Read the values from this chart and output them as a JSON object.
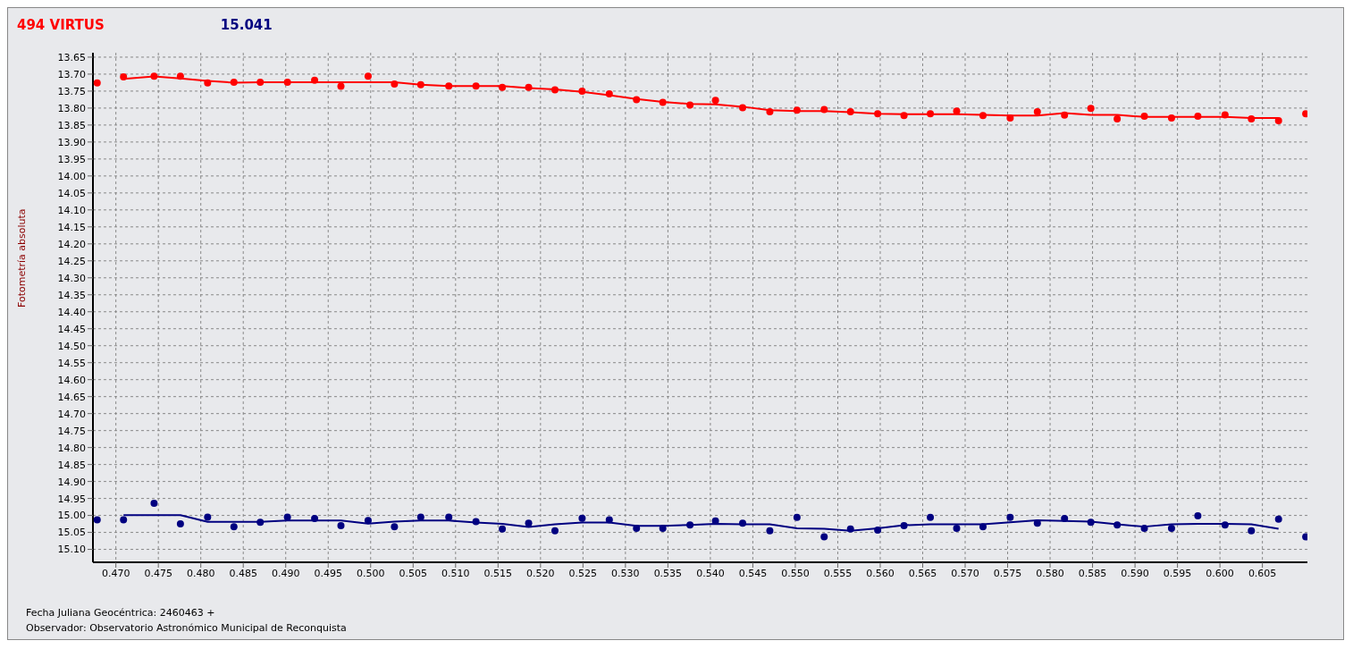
{
  "chart_data": {
    "type": "scatter",
    "ylabel": "Fotometría absoluta",
    "legend": "top left",
    "grid": true,
    "marker": "circle",
    "annotations": [
      "Fecha Juliana Geocéntrica: 2460463 +",
      "Observador: Observatorio Astronómico Municipal de Reconquista"
    ],
    "x": [
      0.4678,
      0.4709,
      0.4745,
      0.4776,
      0.4808,
      0.4839,
      0.487,
      0.4902,
      0.4934,
      0.4965,
      0.4997,
      0.5028,
      0.5059,
      0.5092,
      0.5124,
      0.5155,
      0.5186,
      0.5217,
      0.5249,
      0.5281,
      0.5313,
      0.5344,
      0.5376,
      0.5406,
      0.5438,
      0.547,
      0.5502,
      0.5534,
      0.5565,
      0.5597,
      0.5628,
      0.5659,
      0.569,
      0.5721,
      0.5753,
      0.5785,
      0.5817,
      0.5848,
      0.5879,
      0.5911,
      0.5943,
      0.5974,
      0.6006,
      0.6037,
      0.6069,
      0.6101
    ],
    "xlim": [
      0.4673,
      0.6103
    ],
    "xticks": [
      {
        "value": 0.47,
        "label": "0.470"
      },
      {
        "value": 0.475,
        "label": "0.475"
      },
      {
        "value": 0.48,
        "label": "0.480"
      },
      {
        "value": 0.485,
        "label": "0.485"
      },
      {
        "value": 0.49,
        "label": "0.490"
      },
      {
        "value": 0.495,
        "label": "0.495"
      },
      {
        "value": 0.5,
        "label": "0.500"
      },
      {
        "value": 0.505,
        "label": "0.505"
      },
      {
        "value": 0.51,
        "label": "0.510"
      },
      {
        "value": 0.515,
        "label": "0.515"
      },
      {
        "value": 0.52,
        "label": "0.520"
      },
      {
        "value": 0.525,
        "label": "0.525"
      },
      {
        "value": 0.53,
        "label": "0.530"
      },
      {
        "value": 0.535,
        "label": "0.535"
      },
      {
        "value": 0.54,
        "label": "0.540"
      },
      {
        "value": 0.545,
        "label": "0.545"
      },
      {
        "value": 0.55,
        "label": "0.550"
      },
      {
        "value": 0.555,
        "label": "0.555"
      },
      {
        "value": 0.56,
        "label": "0.560"
      },
      {
        "value": 0.565,
        "label": "0.565"
      },
      {
        "value": 0.57,
        "label": "0.570"
      },
      {
        "value": 0.575,
        "label": "0.575"
      },
      {
        "value": 0.58,
        "label": "0.580"
      },
      {
        "value": 0.585,
        "label": "0.585"
      },
      {
        "value": 0.59,
        "label": "0.590"
      },
      {
        "value": 0.595,
        "label": "0.595"
      },
      {
        "value": 0.6,
        "label": "0.600"
      },
      {
        "value": 0.605,
        "label": "0.605"
      }
    ],
    "ylim": [
      15.138,
      13.637
    ],
    "yticks": [
      {
        "value": 13.65,
        "label": "13.65"
      },
      {
        "value": 13.7,
        "label": "13.70"
      },
      {
        "value": 13.75,
        "label": "13.75"
      },
      {
        "value": 13.8,
        "label": "13.80"
      },
      {
        "value": 13.85,
        "label": "13.85"
      },
      {
        "value": 13.9,
        "label": "13.90"
      },
      {
        "value": 13.95,
        "label": "13.95"
      },
      {
        "value": 14.0,
        "label": "14.00"
      },
      {
        "value": 14.05,
        "label": "14.05"
      },
      {
        "value": 14.1,
        "label": "14.10"
      },
      {
        "value": 14.15,
        "label": "14.15"
      },
      {
        "value": 14.2,
        "label": "14.20"
      },
      {
        "value": 14.25,
        "label": "14.25"
      },
      {
        "value": 14.3,
        "label": "14.30"
      },
      {
        "value": 14.35,
        "label": "14.35"
      },
      {
        "value": 14.4,
        "label": "14.40"
      },
      {
        "value": 14.45,
        "label": "14.45"
      },
      {
        "value": 14.5,
        "label": "14.50"
      },
      {
        "value": 14.55,
        "label": "14.55"
      },
      {
        "value": 14.6,
        "label": "14.60"
      },
      {
        "value": 14.65,
        "label": "14.65"
      },
      {
        "value": 14.7,
        "label": "14.70"
      },
      {
        "value": 14.75,
        "label": "14.75"
      },
      {
        "value": 14.8,
        "label": "14.80"
      },
      {
        "value": 14.85,
        "label": "14.85"
      },
      {
        "value": 14.9,
        "label": "14.90"
      },
      {
        "value": 14.95,
        "label": "14.95"
      },
      {
        "value": 15.0,
        "label": "15.00"
      },
      {
        "value": 15.05,
        "label": "15.05"
      },
      {
        "value": 15.1,
        "label": "15.10"
      }
    ],
    "series": [
      {
        "name": "494 VIRTUS",
        "color": "#ff0000",
        "values": [
          13.726,
          13.708,
          13.706,
          13.706,
          13.726,
          13.724,
          13.724,
          13.724,
          13.718,
          13.736,
          13.706,
          13.729,
          13.731,
          13.735,
          13.735,
          13.739,
          13.739,
          13.746,
          13.75,
          13.758,
          13.775,
          13.783,
          13.791,
          13.777,
          13.799,
          13.811,
          13.806,
          13.804,
          13.811,
          13.817,
          13.822,
          13.817,
          13.809,
          13.822,
          13.829,
          13.811,
          13.821,
          13.801,
          13.832,
          13.824,
          13.829,
          13.824,
          13.82,
          13.832,
          13.837,
          13.817
        ]
      },
      {
        "name": "15.041",
        "color": "#000080",
        "values": [
          15.013,
          15.013,
          14.964,
          15.025,
          15.005,
          15.033,
          15.02,
          15.005,
          15.009,
          15.03,
          15.015,
          15.033,
          15.005,
          15.005,
          15.018,
          15.04,
          15.023,
          15.045,
          15.008,
          15.013,
          15.038,
          15.038,
          15.028,
          15.016,
          15.023,
          15.045,
          15.006,
          15.063,
          15.04,
          15.043,
          15.03,
          15.006,
          15.038,
          15.033,
          15.006,
          15.023,
          15.009,
          15.02,
          15.028,
          15.038,
          15.038,
          15.001,
          15.028,
          15.045,
          15.011,
          15.063
        ]
      },
      {
        "type": "line",
        "marker": "none",
        "color": "#ff0000",
        "x": [
          0.4709,
          0.4745,
          0.4776,
          0.4808,
          0.4839,
          0.487,
          0.4902,
          0.4934,
          0.4965,
          0.4997,
          0.5028,
          0.5059,
          0.5092,
          0.5124,
          0.5155,
          0.5186,
          0.5217,
          0.5249,
          0.5281,
          0.5313,
          0.5344,
          0.5376,
          0.5406,
          0.5438,
          0.547,
          0.5502,
          0.5534,
          0.5565,
          0.5597,
          0.5628,
          0.5659,
          0.569,
          0.5721,
          0.5753,
          0.5785,
          0.5817,
          0.5848,
          0.5879,
          0.5911,
          0.5943,
          0.5974,
          0.6006,
          0.6037,
          0.6069
        ],
        "values": [
          13.714,
          13.707,
          13.713,
          13.72,
          13.725,
          13.724,
          13.724,
          13.724,
          13.724,
          13.724,
          13.724,
          13.731,
          13.735,
          13.735,
          13.735,
          13.741,
          13.745,
          13.752,
          13.762,
          13.773,
          13.782,
          13.788,
          13.789,
          13.796,
          13.806,
          13.809,
          13.809,
          13.812,
          13.817,
          13.818,
          13.818,
          13.818,
          13.82,
          13.822,
          13.822,
          13.815,
          13.82,
          13.82,
          13.826,
          13.826,
          13.826,
          13.826,
          13.829,
          13.829
        ]
      },
      {
        "type": "line",
        "marker": "none",
        "color": "#000080",
        "x": [
          0.4709,
          0.4745,
          0.4776,
          0.4808,
          0.4839,
          0.487,
          0.4902,
          0.4934,
          0.4965,
          0.4997,
          0.5028,
          0.5059,
          0.5092,
          0.5124,
          0.5155,
          0.5186,
          0.5217,
          0.5249,
          0.5281,
          0.5313,
          0.5344,
          0.5376,
          0.5406,
          0.5438,
          0.547,
          0.5502,
          0.5534,
          0.5565,
          0.5597,
          0.5628,
          0.5659,
          0.569,
          0.5721,
          0.5753,
          0.5785,
          0.5817,
          0.5848,
          0.5879,
          0.5911,
          0.5943,
          0.5974,
          0.6006,
          0.6037,
          0.6069
        ],
        "values": [
          14.999,
          14.999,
          14.999,
          15.019,
          15.019,
          15.019,
          15.015,
          15.015,
          15.015,
          15.024,
          15.018,
          15.015,
          15.015,
          15.021,
          15.025,
          15.034,
          15.026,
          15.021,
          15.021,
          15.031,
          15.031,
          15.028,
          15.025,
          15.026,
          15.026,
          15.038,
          15.039,
          15.045,
          15.038,
          15.029,
          15.026,
          15.026,
          15.026,
          15.02,
          15.014,
          15.016,
          15.018,
          15.026,
          15.033,
          15.026,
          15.025,
          15.025,
          15.026,
          15.039
        ]
      }
    ]
  }
}
